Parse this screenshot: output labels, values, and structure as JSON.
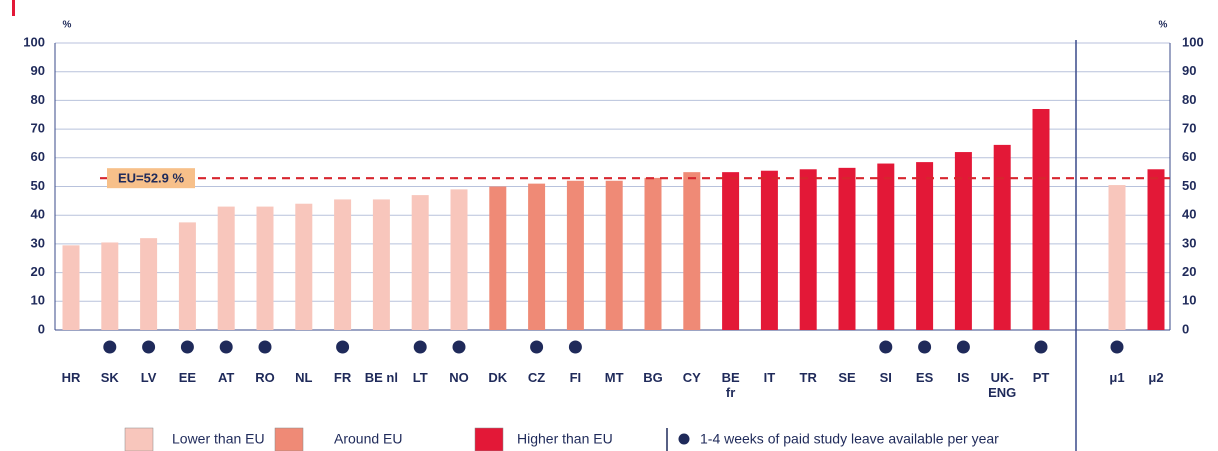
{
  "chart_data": {
    "type": "bar",
    "y_unit": "%",
    "categories": [
      "HR",
      "SK",
      "LV",
      "EE",
      "AT",
      "RO",
      "NL",
      "FR",
      "BE nl",
      "LT",
      "NO",
      "DK",
      "CZ",
      "FI",
      "MT",
      "BG",
      "CY",
      "BE\nfr",
      "IT",
      "TR",
      "SE",
      "SI",
      "ES",
      "IS",
      "UK-\nENG",
      "PT",
      "μ1",
      "μ2"
    ],
    "series": [
      {
        "name": "Lower than EU",
        "color": "#f8c6bc",
        "values": [
          29.5,
          30.5,
          32,
          37.5,
          43,
          43,
          44,
          45.5,
          45.5,
          47,
          49,
          null,
          null,
          null,
          null,
          null,
          null,
          null,
          null,
          null,
          null,
          null,
          null,
          null,
          null,
          null,
          50.5,
          null
        ]
      },
      {
        "name": "Around EU",
        "color": "#ef8a76",
        "values": [
          null,
          null,
          null,
          null,
          null,
          null,
          null,
          null,
          null,
          null,
          null,
          50,
          51,
          52,
          52,
          53,
          55,
          null,
          null,
          null,
          null,
          null,
          null,
          null,
          null,
          null,
          null,
          null
        ]
      },
      {
        "name": "Higher than EU",
        "color": "#e31837",
        "values": [
          null,
          null,
          null,
          null,
          null,
          null,
          null,
          null,
          null,
          null,
          null,
          null,
          null,
          null,
          null,
          null,
          null,
          55,
          55.5,
          56,
          56.5,
          58,
          58.5,
          62,
          64.5,
          77,
          null,
          56
        ]
      }
    ],
    "markers": {
      "name": "1-4 weeks of paid study leave available per year",
      "color": "#1f2a5a",
      "flags": [
        false,
        true,
        true,
        true,
        true,
        true,
        false,
        true,
        false,
        true,
        true,
        false,
        true,
        true,
        false,
        false,
        false,
        false,
        false,
        false,
        false,
        true,
        true,
        true,
        false,
        true,
        true,
        false
      ]
    },
    "reference": {
      "value": 52.9,
      "label": "EU=52.9 %",
      "color": "#d7262e"
    },
    "ylim": [
      0,
      100
    ],
    "yticks": [
      0,
      10,
      20,
      30,
      40,
      50,
      60,
      70,
      80,
      90,
      100
    ],
    "y2lim": [
      0,
      100
    ],
    "y2ticks": [
      0,
      10,
      20,
      30,
      40,
      50,
      60,
      70,
      80,
      90,
      100
    ],
    "grid": true
  }
}
